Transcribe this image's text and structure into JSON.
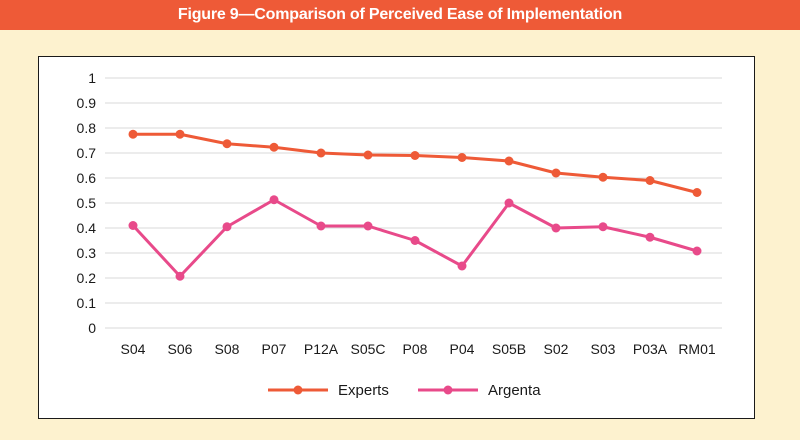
{
  "header": {
    "title": "Figure 9—Comparison of Perceived Ease of Implementation"
  },
  "chart_data": {
    "type": "line",
    "title": "Figure 9—Comparison of Perceived Ease of Implementation",
    "xlabel": "",
    "ylabel": "",
    "ylim": [
      0,
      1
    ],
    "yticks": [
      "0",
      "0.1",
      "0.2",
      "0.3",
      "0.4",
      "0.5",
      "0.6",
      "0.7",
      "0.8",
      "0.9",
      "1"
    ],
    "grid": true,
    "legend_position": "bottom",
    "categories": [
      "S04",
      "S06",
      "S08",
      "P07",
      "P12A",
      "S05C",
      "P08",
      "P04",
      "S05B",
      "S02",
      "S03",
      "P03A",
      "RM01"
    ],
    "series": [
      {
        "name": "Experts",
        "color": "#ee5a37",
        "values": [
          0.775,
          0.775,
          0.737,
          0.723,
          0.7,
          0.692,
          0.69,
          0.682,
          0.668,
          0.62,
          0.603,
          0.59,
          0.542
        ]
      },
      {
        "name": "Argenta",
        "color": "#e84a8a",
        "values": [
          0.41,
          0.207,
          0.405,
          0.513,
          0.408,
          0.408,
          0.35,
          0.248,
          0.5,
          0.4,
          0.405,
          0.363,
          0.308
        ]
      }
    ]
  }
}
